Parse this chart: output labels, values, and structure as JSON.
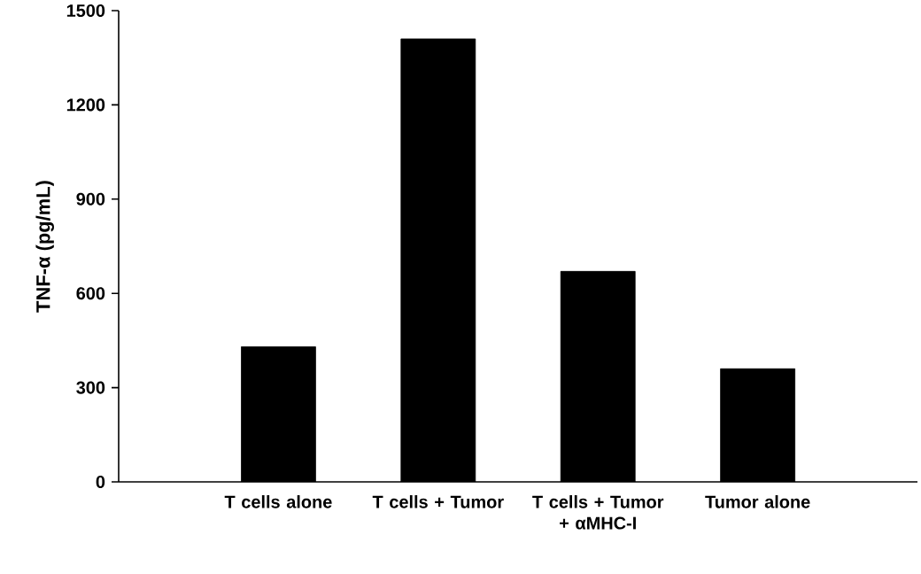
{
  "chart_data": {
    "type": "bar",
    "ylabel": "TNF-α (pg/mL)",
    "categories": [
      "T cells alone",
      "T cells + Tumor",
      "T cells + Tumor + αMHC-I",
      "Tumor alone"
    ],
    "values": [
      430,
      1410,
      670,
      360
    ],
    "color": "#000000",
    "ylim": [
      0,
      1500
    ],
    "yticks": [
      0,
      300,
      600,
      900,
      1200,
      1500
    ]
  }
}
